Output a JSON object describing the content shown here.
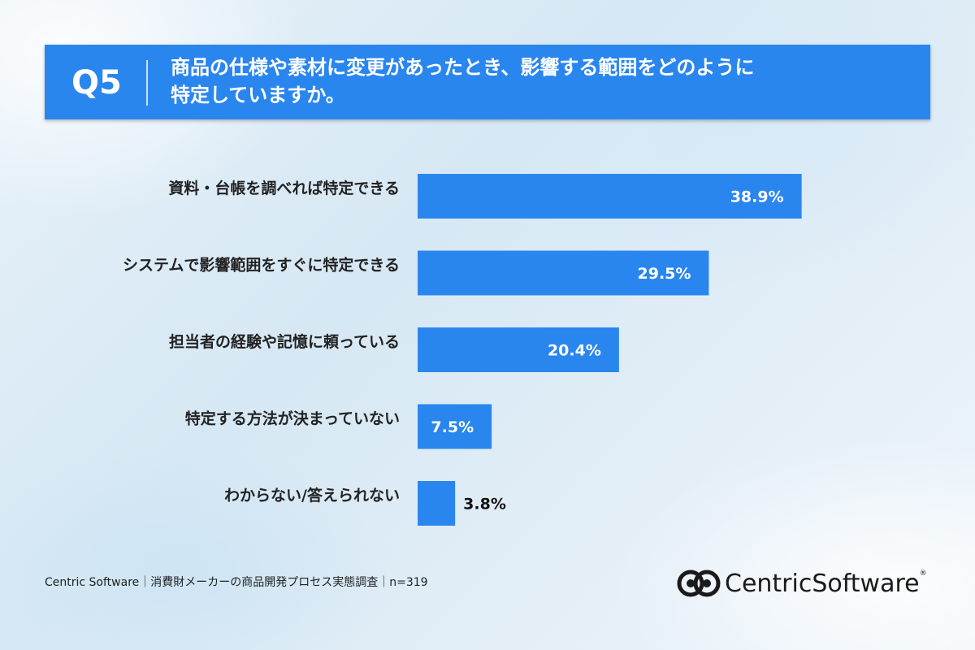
{
  "colors": {
    "accent": "#2a86ef",
    "value_inside": "#ffffff",
    "value_outside": "#111111"
  },
  "question": {
    "number": "Q5",
    "line1": "商品の仕様や素材に変更があったとき、影響する範囲をどのように",
    "line2": "特定していますか。"
  },
  "chart_data": {
    "type": "bar",
    "orientation": "horizontal",
    "categories": [
      "資料・台帳を調べれば特定できる",
      "システムで影響範囲をすぐに特定できる",
      "担当者の経験や記憶に頼っている",
      "特定する方法が決まっていない",
      "わからない/答えられない"
    ],
    "values": [
      38.9,
      29.5,
      20.4,
      7.5,
      3.8
    ],
    "value_labels": [
      "38.9%",
      "29.5%",
      "20.4%",
      "7.5%",
      "3.8%"
    ],
    "unit": "%",
    "grid": false,
    "legend": "none"
  },
  "footer": {
    "source": "Centric Software｜消費財メーカーの商品開発プロセス実態調査｜n=319",
    "logo_text_main": "Centric",
    "logo_text_sub": "Software",
    "logo_reg": "®"
  }
}
